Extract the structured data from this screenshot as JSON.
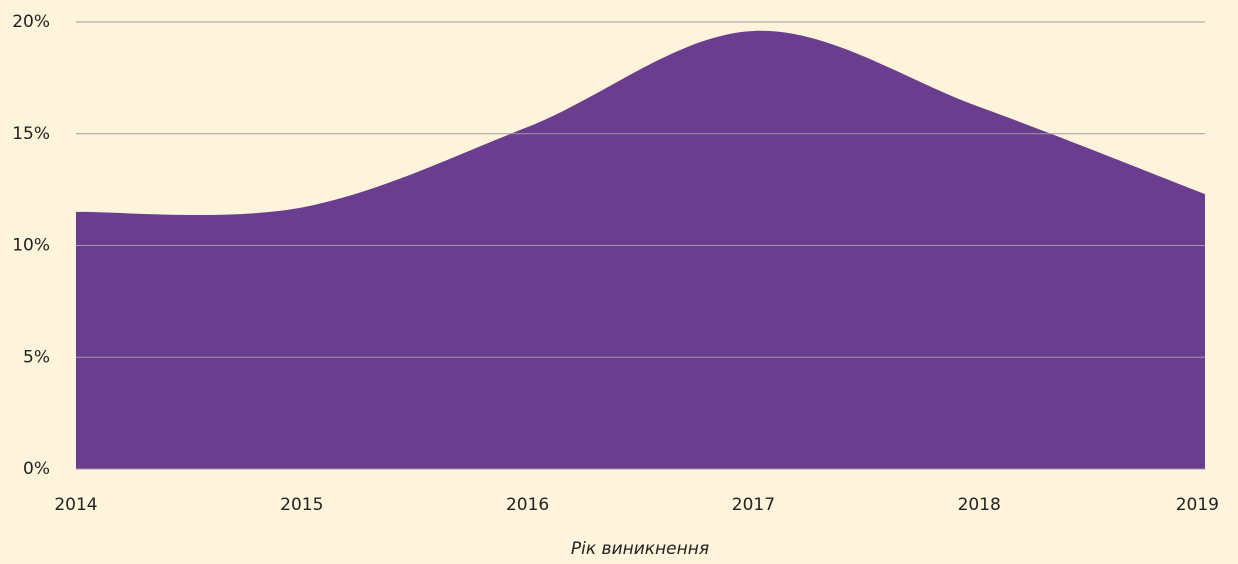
{
  "chart_data": {
    "type": "area",
    "x_label": "Рік виникнення",
    "x": [
      2014,
      2015,
      2016,
      2017,
      2018,
      2019
    ],
    "series": [
      {
        "color": "#6b3d8f",
        "values": [
          11.5,
          11.7,
          15.3,
          19.6,
          16.2,
          12.3
        ]
      }
    ],
    "xlim": [
      2014,
      2019
    ],
    "xticks": [
      2014,
      2015,
      2016,
      2017,
      2018,
      2019
    ],
    "ylim": [
      0,
      20
    ],
    "yticks": [
      {
        "value": 0,
        "label": "0%"
      },
      {
        "value": 5,
        "label": "5%"
      },
      {
        "value": 10,
        "label": "10%"
      },
      {
        "value": 15,
        "label": "15%"
      },
      {
        "value": 20,
        "label": "20%"
      }
    ],
    "grid": true,
    "smooth": true
  }
}
